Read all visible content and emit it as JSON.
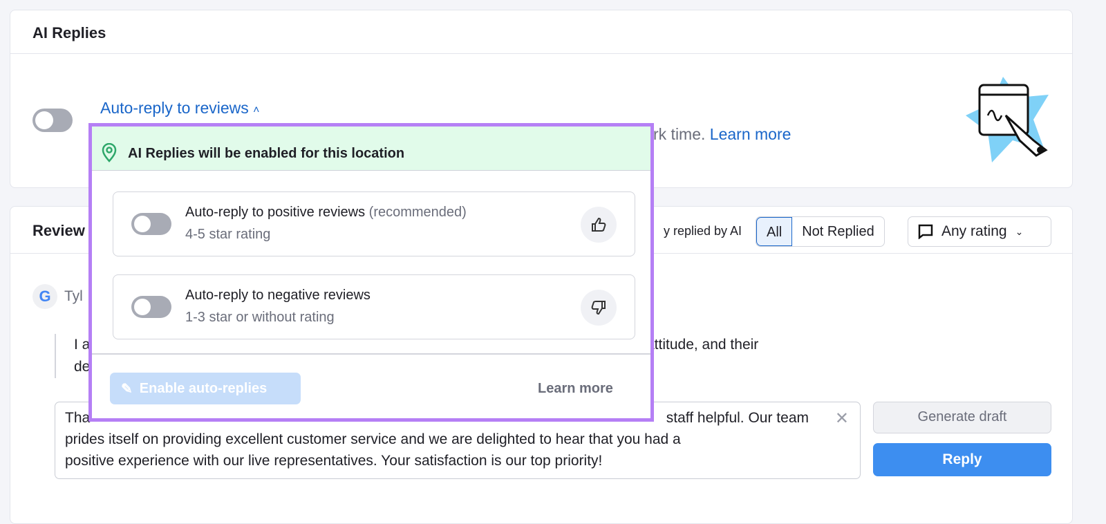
{
  "ai_replies": {
    "title": "AI Replies",
    "auto_reply_link": "Auto-reply to reviews",
    "description_visible": "rk time.",
    "learn_more": "Learn more"
  },
  "reviews": {
    "title_visible": "Review",
    "filter_note_visible": "y replied by AI",
    "segments": [
      "All",
      "Not Replied"
    ],
    "selected_segment": "All",
    "rating_filter": "Any rating",
    "review": {
      "author_visible": "Tyl",
      "text_line1_left": "I a",
      "text_line1_right": "attitude, and their",
      "text_line2_left": "de"
    },
    "reply": {
      "line1_left": "Tha",
      "line1_right": "staff helpful. Our team",
      "line2": "prides itself on providing excellent customer service and we are delighted to hear that you had a",
      "line3": "positive experience with our live representatives. Your satisfaction is our top priority!"
    },
    "generate_draft": "Generate draft",
    "reply_button": "Reply"
  },
  "popup": {
    "banner": "AI Replies will be enabled for this location",
    "options": [
      {
        "title": "Auto-reply to positive reviews",
        "note": "(recommended)",
        "sub": "4-5 star rating",
        "icon": "thumbs-up-icon",
        "enabled": false
      },
      {
        "title": "Auto-reply to negative reviews",
        "sub": "1-3 star or without rating",
        "icon": "thumbs-down-icon",
        "enabled": false
      }
    ],
    "enable_button": "Enable auto-replies",
    "learn_more": "Learn more"
  },
  "colors": {
    "accent": "#1a66c9",
    "popup_border": "#b57ff5",
    "banner_bg": "#e1fbea",
    "reply_button": "#3d8ef0"
  }
}
